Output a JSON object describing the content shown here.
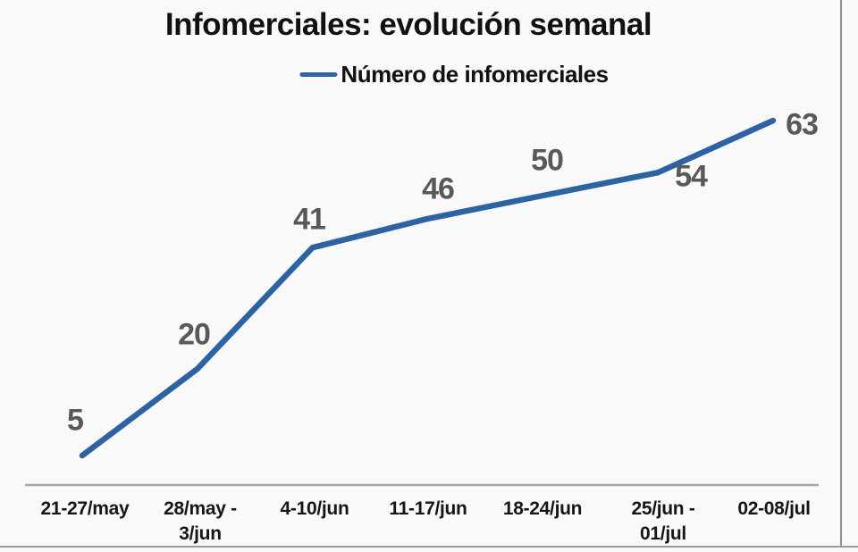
{
  "chart_data": {
    "type": "line",
    "title": "Infomerciales: evolución semanal",
    "legend": "Número de infomerciales",
    "series": [
      {
        "name": "Número de infomerciales",
        "values": [
          5,
          20,
          41,
          46,
          50,
          54,
          63
        ]
      }
    ],
    "categories": [
      "21-27/may",
      "28/may -\n3/jun",
      "4-10/jun",
      "11-17/jun",
      "18-24/jun",
      "25/jun -\n01/jul",
      "02-08/jul"
    ],
    "values": [
      5,
      20,
      41,
      46,
      50,
      54,
      63
    ],
    "ylim": [
      0,
      65
    ],
    "grid": false,
    "legend_position": "top",
    "colors": {
      "line": "#2e63a3",
      "data_label": "#595959",
      "axis": "#a6a6a6",
      "text": "#111111",
      "background": "#f9f9f9"
    }
  }
}
